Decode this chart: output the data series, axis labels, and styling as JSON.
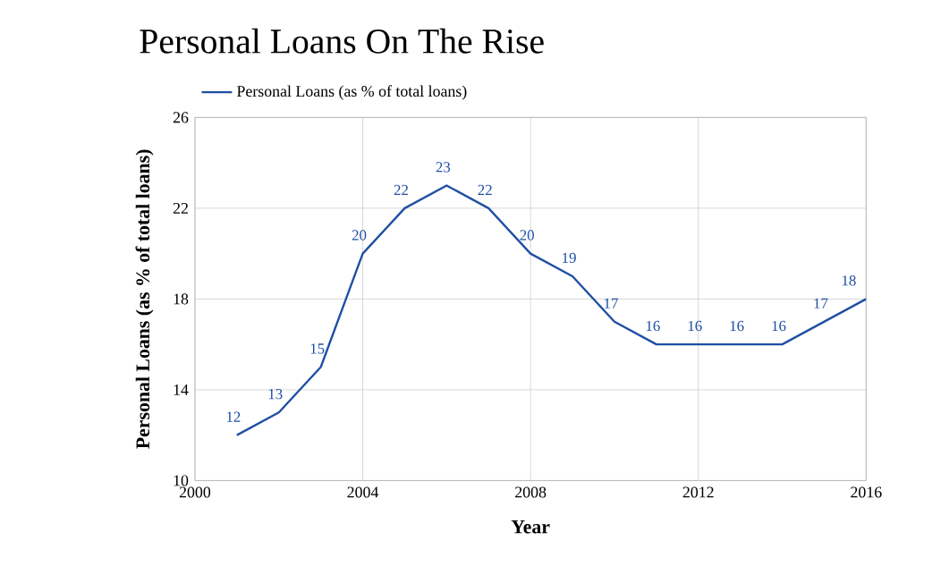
{
  "chart_data": {
    "type": "line",
    "title": "Personal Loans On The Rise",
    "xlabel": "Year",
    "ylabel": "Personal Loans (as % of total loans)",
    "x": [
      2001,
      2002,
      2003,
      2004,
      2005,
      2006,
      2007,
      2008,
      2009,
      2010,
      2011,
      2012,
      2013,
      2014,
      2015,
      2016
    ],
    "series": [
      {
        "name": "Personal Loans (as % of total loans)",
        "color": "#1f4fa3",
        "values": [
          12,
          13,
          15,
          20,
          22,
          23,
          22,
          20,
          19,
          17,
          16,
          16,
          16,
          16,
          17,
          18
        ]
      }
    ],
    "xlim": [
      2000,
      2016
    ],
    "xticks": [
      2000,
      2004,
      2008,
      2012,
      2016
    ],
    "ylim": [
      10,
      26
    ],
    "yticks": [
      10,
      14,
      18,
      22,
      26
    ],
    "grid": true,
    "legend": "top left",
    "data_labels": true,
    "marker": "none",
    "line_style": "solid"
  }
}
